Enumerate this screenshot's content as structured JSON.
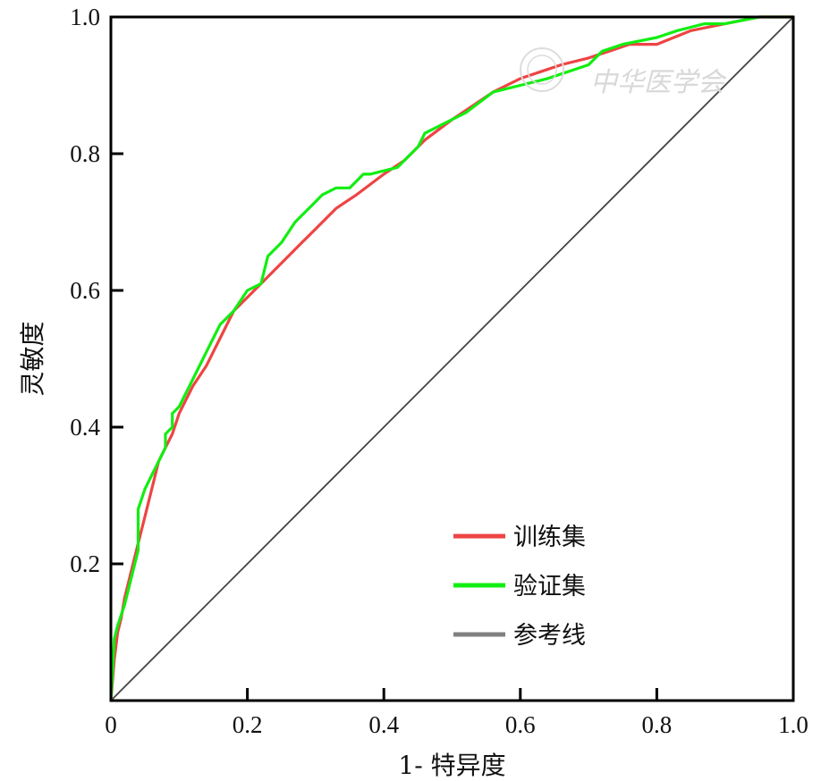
{
  "chart_data": {
    "type": "line",
    "xlabel": "1- 特异度",
    "ylabel": "灵敏度",
    "xlim": [
      0,
      1
    ],
    "ylim": [
      0,
      1
    ],
    "x_ticks": [
      "0",
      "0.2",
      "0.4",
      "0.6",
      "0.8",
      "1.0"
    ],
    "y_ticks": [
      "0.2",
      "0.4",
      "0.6",
      "0.8",
      "1.0"
    ],
    "grid": false,
    "legend_position": "lower-right",
    "watermark": "中华医学会",
    "series": [
      {
        "name": "训练集",
        "color": "#ee4444",
        "x": [
          0,
          0.005,
          0.01,
          0.015,
          0.02,
          0.03,
          0.04,
          0.05,
          0.06,
          0.07,
          0.08,
          0.09,
          0.1,
          0.12,
          0.14,
          0.16,
          0.18,
          0.2,
          0.22,
          0.25,
          0.28,
          0.3,
          0.33,
          0.36,
          0.4,
          0.43,
          0.46,
          0.5,
          0.53,
          0.56,
          0.6,
          0.63,
          0.66,
          0.7,
          0.73,
          0.76,
          0.8,
          0.85,
          0.9,
          0.95,
          1.0
        ],
        "y": [
          0,
          0.06,
          0.1,
          0.12,
          0.15,
          0.19,
          0.23,
          0.27,
          0.31,
          0.35,
          0.37,
          0.39,
          0.42,
          0.46,
          0.49,
          0.53,
          0.57,
          0.59,
          0.61,
          0.64,
          0.67,
          0.69,
          0.72,
          0.74,
          0.77,
          0.79,
          0.82,
          0.85,
          0.87,
          0.89,
          0.91,
          0.92,
          0.93,
          0.94,
          0.95,
          0.96,
          0.96,
          0.98,
          0.99,
          1.0,
          1.0
        ]
      },
      {
        "name": "验证集",
        "color": "#11ee11",
        "x": [
          0,
          0.005,
          0.01,
          0.02,
          0.03,
          0.04,
          0.04,
          0.05,
          0.06,
          0.07,
          0.08,
          0.08,
          0.09,
          0.09,
          0.1,
          0.12,
          0.14,
          0.16,
          0.18,
          0.2,
          0.22,
          0.23,
          0.25,
          0.27,
          0.29,
          0.3,
          0.31,
          0.33,
          0.35,
          0.36,
          0.37,
          0.38,
          0.42,
          0.45,
          0.46,
          0.48,
          0.52,
          0.56,
          0.6,
          0.64,
          0.67,
          0.7,
          0.72,
          0.75,
          0.8,
          0.83,
          0.87,
          0.9,
          0.95,
          1.0
        ],
        "y": [
          0,
          0.09,
          0.11,
          0.14,
          0.18,
          0.22,
          0.28,
          0.31,
          0.33,
          0.35,
          0.37,
          0.39,
          0.4,
          0.42,
          0.43,
          0.47,
          0.51,
          0.55,
          0.57,
          0.6,
          0.61,
          0.65,
          0.67,
          0.7,
          0.72,
          0.73,
          0.74,
          0.75,
          0.75,
          0.76,
          0.77,
          0.77,
          0.78,
          0.81,
          0.83,
          0.84,
          0.86,
          0.89,
          0.9,
          0.91,
          0.92,
          0.93,
          0.95,
          0.96,
          0.97,
          0.98,
          0.99,
          0.99,
          1.0,
          1.0
        ]
      },
      {
        "name": "参考线",
        "color": "#444444",
        "legend_color": "#808080",
        "x": [
          0,
          1
        ],
        "y": [
          0,
          1
        ]
      }
    ]
  }
}
